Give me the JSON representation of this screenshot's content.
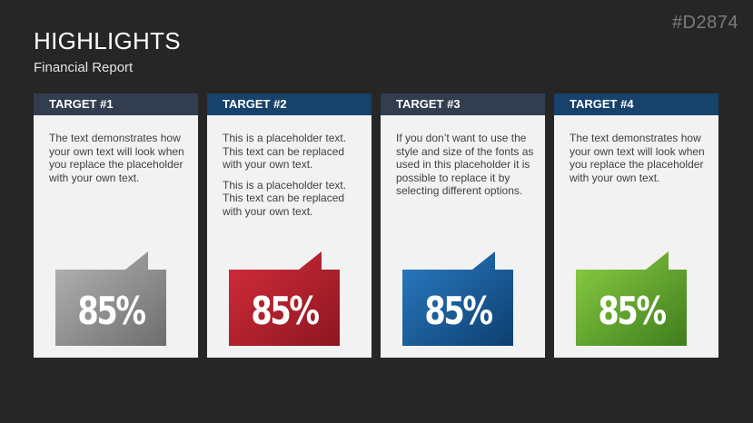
{
  "slide_id": "#D2874",
  "title": "HIGHLIGHTS",
  "subtitle": "Financial Report",
  "cards": [
    {
      "header": "TARGET #1",
      "header_color": "#323e4f",
      "paragraphs": [
        "The text demonstrates how your own text will look when you replace the placeholder with your own text."
      ],
      "value": "85%",
      "badge_colors": [
        "#b5b5b5",
        "#6d6d6d"
      ]
    },
    {
      "header": "TARGET #2",
      "header_color": "#17426b",
      "paragraphs": [
        "This is a placeholder text. This text can be replaced with your own text.",
        "This is a placeholder text. This text can be replaced with your own text."
      ],
      "value": "85%",
      "badge_colors": [
        "#d42d3b",
        "#8c1620"
      ]
    },
    {
      "header": "TARGET #3",
      "header_color": "#323e4f",
      "paragraphs": [
        "If you don’t want to use the style and size of the fonts as used in this placeholder it is possible to replace it by selecting different options."
      ],
      "value": "85%",
      "badge_colors": [
        "#2a7cc4",
        "#0d3f70"
      ]
    },
    {
      "header": "TARGET #4",
      "header_color": "#17426b",
      "paragraphs": [
        "The text demonstrates how your own text will look when you replace the placeholder with your own text."
      ],
      "value": "85%",
      "badge_colors": [
        "#8ccf44",
        "#3e7d1d"
      ]
    }
  ]
}
